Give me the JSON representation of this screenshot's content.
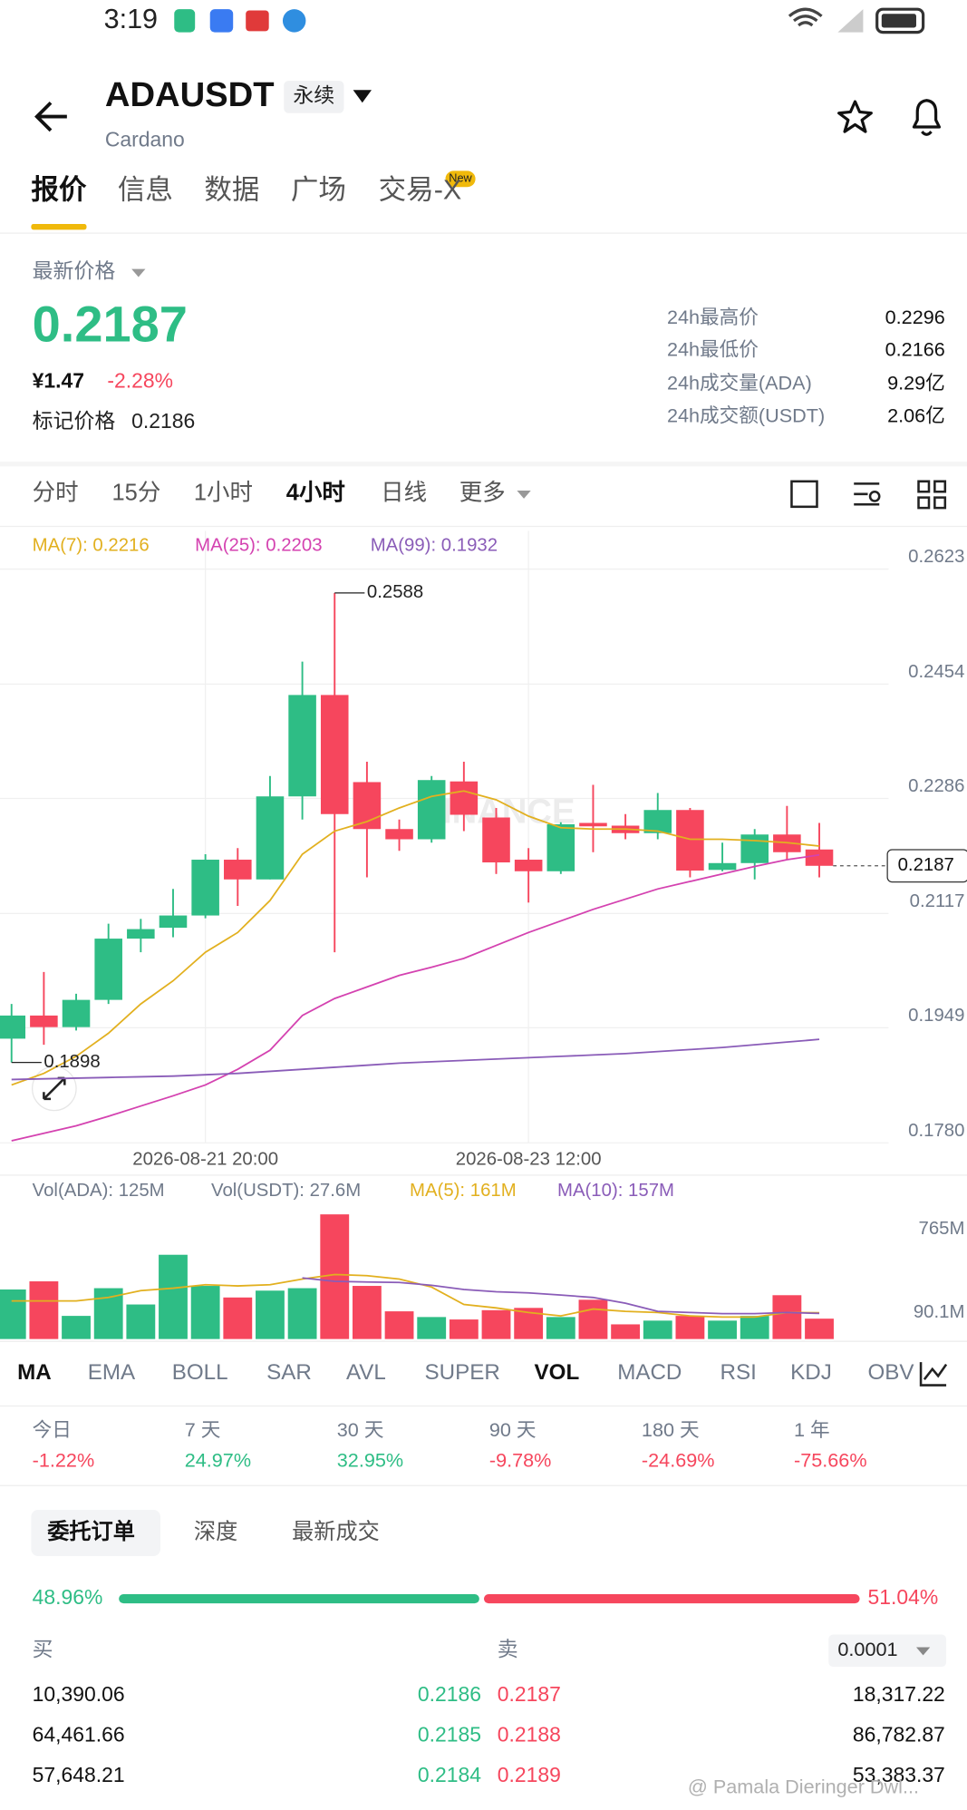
{
  "status_bar": {
    "time": "3:19"
  },
  "header": {
    "symbol": "ADAUSDT",
    "contract": "永续",
    "name": "Cardano"
  },
  "tabs": [
    "报价",
    "信息",
    "数据",
    "广场",
    "交易-X"
  ],
  "new_badge": "New",
  "price": {
    "title": "最新价格",
    "last": "0.2187",
    "cny": "¥1.47",
    "change": "-2.28%",
    "mark_label": "标记价格",
    "mark": "0.2186"
  },
  "stats": [
    [
      "24h最高价",
      "0.2296"
    ],
    [
      "24h最低价",
      "0.2166"
    ],
    [
      "24h成交量(ADA)",
      "9.29亿"
    ],
    [
      "24h成交额(USDT)",
      "2.06亿"
    ]
  ],
  "intervals": [
    "分时",
    "15分",
    "1小时",
    "4小时",
    "日线",
    "更多"
  ],
  "chart_data": [
    {
      "type": "candlestick",
      "watermark": "BINANCE",
      "categories": [
        null,
        null,
        null,
        null,
        null,
        null,
        "2026-08-21 20:00",
        null,
        null,
        null,
        null,
        null,
        null,
        null,
        null,
        null,
        "2026-08-23 12:00",
        null,
        null,
        null,
        null,
        null,
        null,
        null,
        null,
        null
      ],
      "up_color": "#2ebd85",
      "down_color": "#f6465d",
      "series": [
        {
          "open": [
            0.1933,
            0.1967,
            0.195,
            0.199,
            0.208,
            0.2096,
            0.2114,
            0.2196,
            0.2167,
            0.2289,
            0.2438,
            0.231,
            0.2241,
            0.2226,
            0.2311,
            0.2258,
            0.2196,
            0.2179,
            0.225,
            0.2246,
            0.2235,
            0.2269,
            0.2181,
            0.2191,
            0.2233,
            0.2211
          ],
          "high": [
            0.1984,
            0.2031,
            0.1999,
            0.2102,
            0.2109,
            0.2153,
            0.2204,
            0.2213,
            0.2319,
            0.2487,
            0.2588,
            0.234,
            0.2255,
            0.2319,
            0.234,
            0.2272,
            0.2213,
            0.2251,
            0.2306,
            0.2263,
            0.2294,
            0.2272,
            0.2221,
            0.2241,
            0.2275,
            0.225
          ],
          "low": [
            0.1898,
            0.1924,
            0.1945,
            0.1984,
            0.206,
            0.2082,
            0.211,
            0.2128,
            0.2167,
            0.2255,
            0.206,
            0.217,
            0.2209,
            0.2221,
            0.2238,
            0.2175,
            0.2133,
            0.2175,
            0.2207,
            0.2226,
            0.2226,
            0.217,
            0.2179,
            0.2167,
            0.2196,
            0.217
          ],
          "close": [
            0.1967,
            0.195,
            0.199,
            0.208,
            0.2094,
            0.2114,
            0.2196,
            0.2167,
            0.2289,
            0.2438,
            0.2263,
            0.2241,
            0.2226,
            0.2313,
            0.2262,
            0.2192,
            0.2179,
            0.2248,
            0.2245,
            0.2235,
            0.2269,
            0.218,
            0.2191,
            0.2233,
            0.2207,
            0.2187
          ]
        },
        {
          "name": "MA(7): 0.2216",
          "color": "#e2b01f",
          "values": [
            0.1865,
            0.1882,
            0.1907,
            0.1941,
            0.1984,
            0.2018,
            0.206,
            0.2089,
            0.2136,
            0.2204,
            0.2238,
            0.2252,
            0.2272,
            0.2289,
            0.2297,
            0.2284,
            0.226,
            0.2243,
            0.2241,
            0.2241,
            0.2238,
            0.2226,
            0.2226,
            0.2224,
            0.2221,
            0.2216
          ]
        },
        {
          "name": "MA(25): 0.2203",
          "color": "#d442b0",
          "values": [
            0.1783,
            0.1794,
            0.1805,
            0.1819,
            0.1834,
            0.1849,
            0.1865,
            0.1888,
            0.1916,
            0.1967,
            0.1992,
            0.2009,
            0.2026,
            0.2038,
            0.2051,
            0.207,
            0.2089,
            0.2106,
            0.2123,
            0.2138,
            0.2153,
            0.2164,
            0.2175,
            0.2186,
            0.2196,
            0.2203
          ]
        },
        {
          "name": "MA(99): 0.1932",
          "color": "#8a5cb8",
          "values": [
            0.1873,
            0.1874,
            0.1875,
            0.1876,
            0.1877,
            0.1878,
            0.188,
            0.1882,
            0.1885,
            0.1888,
            0.1891,
            0.1894,
            0.1897,
            0.1899,
            0.1901,
            0.1903,
            0.1905,
            0.1907,
            0.1909,
            0.1911,
            0.1914,
            0.1917,
            0.192,
            0.1924,
            0.1928,
            0.1932
          ]
        }
      ],
      "ylim": [
        0.178,
        0.2623
      ],
      "yticks": [
        0.2623,
        0.2454,
        0.2286,
        0.2117,
        0.1949,
        {
          "value": 0.178,
          "label": "0.1780"
        }
      ],
      "grid": true
    },
    {
      "type": "bar",
      "annotation": "Vol(USDT): 27.6M",
      "series": [
        {
          "name": "Vol(ADA): 125M",
          "values": [
            304,
            354,
            142,
            312,
            212,
            517,
            326,
            255,
            297,
            312,
            765,
            326,
            170,
            135,
            120,
            177,
            191,
            135,
            241,
            90.1,
            113,
            142,
            113,
            142,
            269,
            125
          ]
        },
        {
          "name": "MA(5): 161M",
          "color": "#e2b01f",
          "values": [
            234,
            234,
            234,
            255,
            297,
            312,
            333,
            326,
            333,
            368,
            396,
            389,
            368,
            319,
            212,
            191,
            163,
            142,
            184,
            170,
            163,
            142,
            135,
            135,
            163,
            161
          ]
        },
        {
          "name": "MA(10): 157M",
          "color": "#8a5cb8",
          "values": [
            null,
            null,
            null,
            null,
            null,
            null,
            null,
            null,
            null,
            375,
            354,
            350,
            347,
            330,
            304,
            290,
            283,
            270,
            255,
            220,
            170,
            163,
            156,
            156,
            163,
            157
          ]
        }
      ],
      "ylim": [
        0,
        765
      ],
      "yticks": [
        {
          "value": 765,
          "label": "765M"
        },
        {
          "value": 90.1,
          "label": "90.1M"
        }
      ]
    }
  ],
  "indicators": [
    "MA",
    "EMA",
    "BOLL",
    "SAR",
    "AVL",
    "SUPER",
    "VOL",
    "MACD",
    "RSI",
    "KDJ",
    "OBV"
  ],
  "performance": [
    [
      "今日",
      "-1.22%"
    ],
    [
      "7 天",
      "24.97%"
    ],
    [
      "30 天",
      "32.95%"
    ],
    [
      "90 天",
      "-9.78%"
    ],
    [
      "180 天",
      "-24.69%"
    ],
    [
      "1 年",
      "-75.66%"
    ]
  ],
  "order_tabs": [
    "委托订单",
    "深度",
    "最新成交"
  ],
  "ratio": {
    "buy": {
      "value": 48.96,
      "label": "48.96%"
    },
    "sell": {
      "value": 51.04,
      "label": "51.04%"
    }
  },
  "book": {
    "buy_header": "买",
    "sell_header": "卖",
    "precision": "0.0001",
    "rows": [
      [
        "10,390.06",
        "0.2186",
        "0.2187",
        "18,317.22"
      ],
      [
        "64,461.66",
        "0.2185",
        "0.2188",
        "86,782.87"
      ],
      [
        "57,648.21",
        "0.2184",
        "0.2189",
        "53,383.37"
      ]
    ]
  },
  "watermark": "@ Pamala Dieringer Dwl..."
}
